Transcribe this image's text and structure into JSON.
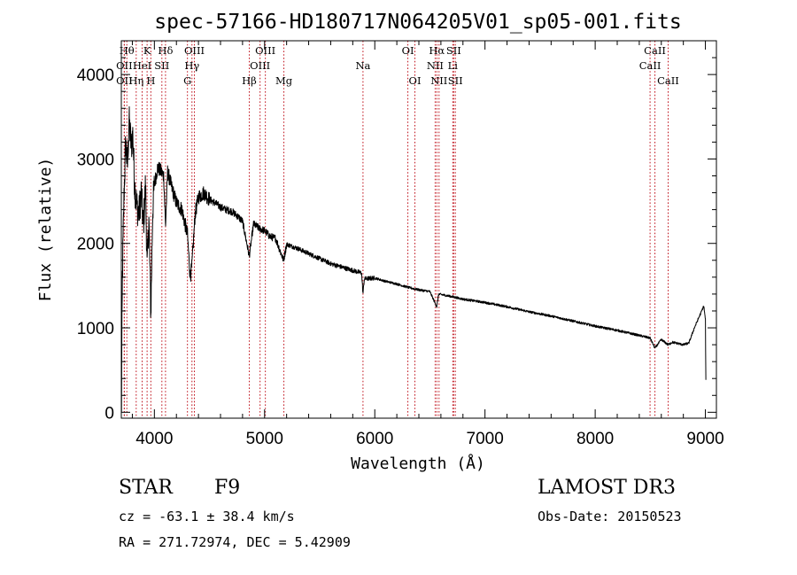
{
  "chart_data": {
    "type": "line",
    "title": "spec-57166-HD180717N064205V01_sp05-001.fits",
    "xlabel": "Wavelength (Å)",
    "ylabel": "Flux (relative)",
    "xlim": [
      3700,
      9100
    ],
    "ylim": [
      -70,
      4400
    ],
    "xticks": [
      4000,
      5000,
      6000,
      7000,
      8000,
      9000
    ],
    "yticks": [
      0,
      1000,
      2000,
      3000,
      4000
    ],
    "spectrum_anchors": [
      [
        3700,
        0
      ],
      [
        3710,
        1600
      ],
      [
        3725,
        2600
      ],
      [
        3740,
        3200
      ],
      [
        3755,
        2900
      ],
      [
        3770,
        3450
      ],
      [
        3790,
        3150
      ],
      [
        3805,
        3300
      ],
      [
        3820,
        2700
      ],
      [
        3840,
        2450
      ],
      [
        3860,
        2350
      ],
      [
        3880,
        2600
      ],
      [
        3900,
        2200
      ],
      [
        3920,
        2700
      ],
      [
        3934,
        1700
      ],
      [
        3950,
        2300
      ],
      [
        3968,
        1150
      ],
      [
        3985,
        2400
      ],
      [
        4000,
        2700
      ],
      [
        4030,
        2900
      ],
      [
        4060,
        2850
      ],
      [
        4085,
        2800
      ],
      [
        4101,
        2200
      ],
      [
        4120,
        2850
      ],
      [
        4160,
        2650
      ],
      [
        4200,
        2480
      ],
      [
        4250,
        2400
      ],
      [
        4300,
        2100
      ],
      [
        4325,
        1600
      ],
      [
        4340,
        1720
      ],
      [
        4370,
        2350
      ],
      [
        4400,
        2550
      ],
      [
        4450,
        2600
      ],
      [
        4500,
        2520
      ],
      [
        4550,
        2480
      ],
      [
        4600,
        2430
      ],
      [
        4650,
        2400
      ],
      [
        4700,
        2380
      ],
      [
        4750,
        2330
      ],
      [
        4800,
        2260
      ],
      [
        4861,
        1850
      ],
      [
        4900,
        2230
      ],
      [
        4950,
        2180
      ],
      [
        5000,
        2150
      ],
      [
        5050,
        2080
      ],
      [
        5100,
        2060
      ],
      [
        5172,
        1800
      ],
      [
        5200,
        1990
      ],
      [
        5300,
        1940
      ],
      [
        5400,
        1880
      ],
      [
        5500,
        1820
      ],
      [
        5600,
        1760
      ],
      [
        5700,
        1720
      ],
      [
        5800,
        1680
      ],
      [
        5880,
        1650
      ],
      [
        5893,
        1400
      ],
      [
        5905,
        1580
      ],
      [
        6000,
        1590
      ],
      [
        6100,
        1550
      ],
      [
        6200,
        1520
      ],
      [
        6300,
        1480
      ],
      [
        6400,
        1450
      ],
      [
        6500,
        1430
      ],
      [
        6562,
        1250
      ],
      [
        6580,
        1400
      ],
      [
        6700,
        1370
      ],
      [
        6800,
        1340
      ],
      [
        7000,
        1300
      ],
      [
        7200,
        1250
      ],
      [
        7400,
        1190
      ],
      [
        7600,
        1140
      ],
      [
        7800,
        1080
      ],
      [
        8000,
        1020
      ],
      [
        8200,
        970
      ],
      [
        8400,
        910
      ],
      [
        8498,
        880
      ],
      [
        8542,
        760
      ],
      [
        8600,
        860
      ],
      [
        8662,
        800
      ],
      [
        8700,
        830
      ],
      [
        8800,
        800
      ],
      [
        8850,
        820
      ],
      [
        8900,
        1000
      ],
      [
        8960,
        1180
      ],
      [
        8985,
        1260
      ],
      [
        9000,
        1100
      ],
      [
        9005,
        200
      ]
    ],
    "line_markers": [
      {
        "w": 3750,
        "label": "Hθ",
        "row": 1
      },
      {
        "w": 3727,
        "label": "OII",
        "row": 2
      },
      {
        "w": 3727,
        "label": "OII",
        "row": 3
      },
      {
        "w": 3835,
        "label": "Hη",
        "row": 3
      },
      {
        "w": 3889,
        "label": "HeI",
        "row": 2
      },
      {
        "w": 3934,
        "label": "K",
        "row": 1
      },
      {
        "w": 3968,
        "label": "H",
        "row": 3
      },
      {
        "w": 4068,
        "label": "SII",
        "row": 2
      },
      {
        "w": 4101,
        "label": "Hδ",
        "row": 1
      },
      {
        "w": 4300,
        "label": "G",
        "row": 3
      },
      {
        "w": 4341,
        "label": "Hγ",
        "row": 2
      },
      {
        "w": 4363,
        "label": "OIII",
        "row": 1
      },
      {
        "w": 4861,
        "label": "Hβ",
        "row": 3
      },
      {
        "w": 4959,
        "label": "OIII",
        "row": 2
      },
      {
        "w": 5007,
        "label": "OIII",
        "row": 1
      },
      {
        "w": 5175,
        "label": "Mg",
        "row": 3
      },
      {
        "w": 5893,
        "label": "Na",
        "row": 2
      },
      {
        "w": 6300,
        "label": "OI",
        "row": 1
      },
      {
        "w": 6364,
        "label": "OI",
        "row": 3
      },
      {
        "w": 6548,
        "label": "NII",
        "row": 2
      },
      {
        "w": 6563,
        "label": "Hα",
        "row": 1
      },
      {
        "w": 6583,
        "label": "NII",
        "row": 3
      },
      {
        "w": 6708,
        "label": "Li",
        "row": 2
      },
      {
        "w": 6716,
        "label": "SII",
        "row": 1
      },
      {
        "w": 6731,
        "label": "SII",
        "row": 3
      },
      {
        "w": 8498,
        "label": "CaII",
        "row": 2
      },
      {
        "w": 8542,
        "label": "CaII",
        "row": 1
      },
      {
        "w": 8662,
        "label": "CaII",
        "row": 3
      }
    ],
    "colors": {
      "spectrum": "#000000",
      "markers": "#c0141e"
    }
  },
  "info": {
    "object_class": "STAR",
    "subclass": "F9",
    "survey": "LAMOST DR3",
    "redshift": "cz = -63.1 ± 38.4 km/s",
    "obs_date": "Obs-Date: 20150523",
    "coords": "RA = 271.72974, DEC =   5.42909"
  }
}
